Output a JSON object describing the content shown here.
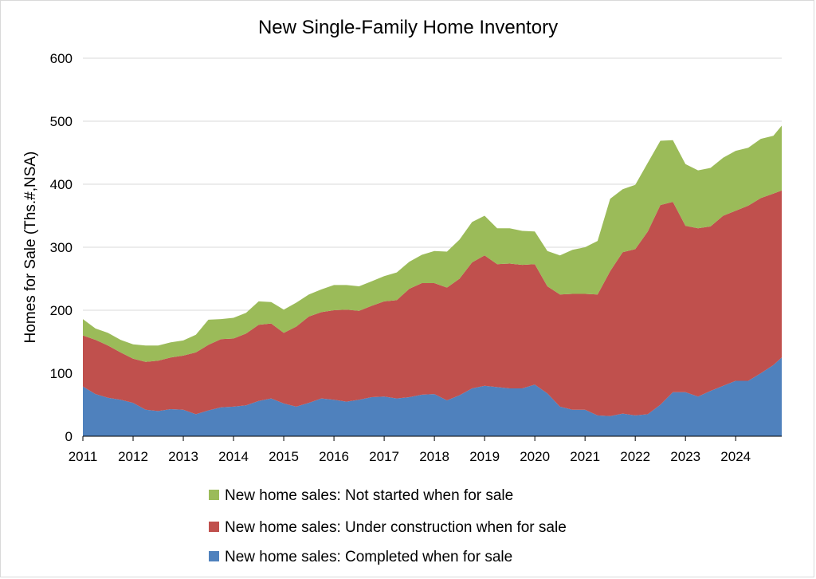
{
  "chart_data": {
    "type": "area",
    "stacked": true,
    "title": "New Single-Family Home Inventory",
    "xlabel": "",
    "ylabel": "Homes for Sale (Ths.#,NSA)",
    "ylim": [
      0,
      600
    ],
    "yticks": [
      0,
      100,
      200,
      300,
      400,
      500,
      600
    ],
    "xlim": [
      2011.0,
      2024.917
    ],
    "xticks": [
      "2011",
      "2012",
      "2013",
      "2014",
      "2015",
      "2016",
      "2017",
      "2018",
      "2019",
      "2020",
      "2021",
      "2022",
      "2023",
      "2024"
    ],
    "grid": "horizontal",
    "legend_position": "bottom",
    "x": [
      2011.0,
      2011.25,
      2011.5,
      2011.75,
      2012.0,
      2012.25,
      2012.5,
      2012.75,
      2013.0,
      2013.25,
      2013.5,
      2013.75,
      2014.0,
      2014.25,
      2014.5,
      2014.75,
      2015.0,
      2015.25,
      2015.5,
      2015.75,
      2016.0,
      2016.25,
      2016.5,
      2016.75,
      2017.0,
      2017.25,
      2017.5,
      2017.75,
      2018.0,
      2018.25,
      2018.5,
      2018.75,
      2019.0,
      2019.25,
      2019.5,
      2019.75,
      2020.0,
      2020.25,
      2020.5,
      2020.75,
      2021.0,
      2021.25,
      2021.5,
      2021.75,
      2022.0,
      2022.25,
      2022.5,
      2022.75,
      2023.0,
      2023.25,
      2023.5,
      2023.75,
      2024.0,
      2024.25,
      2024.5,
      2024.75,
      2024.917
    ],
    "series": [
      {
        "name": "New home sales: Completed when for sale",
        "color": "#4f81bd",
        "values": [
          79,
          67,
          61,
          58,
          53,
          42,
          40,
          43,
          42,
          35,
          41,
          46,
          47,
          49,
          56,
          60,
          52,
          47,
          53,
          60,
          58,
          55,
          58,
          62,
          63,
          60,
          62,
          66,
          67,
          57,
          65,
          76,
          80,
          78,
          76,
          76,
          82,
          68,
          47,
          42,
          42,
          33,
          32,
          36,
          33,
          35,
          50,
          70,
          70,
          63,
          72,
          80,
          88,
          88,
          100,
          113,
          125
        ]
      },
      {
        "name": "New home sales: Under construction when for sale",
        "color": "#c0504d",
        "values": [
          81,
          86,
          83,
          75,
          70,
          76,
          80,
          82,
          86,
          98,
          104,
          108,
          108,
          114,
          121,
          119,
          112,
          127,
          137,
          137,
          142,
          146,
          141,
          145,
          151,
          156,
          172,
          177,
          176,
          179,
          185,
          200,
          207,
          195,
          198,
          196,
          191,
          170,
          178,
          184,
          184,
          192,
          230,
          256,
          264,
          290,
          317,
          302,
          264,
          267,
          261,
          270,
          270,
          278,
          278,
          272,
          265
        ]
      },
      {
        "name": "New home sales: Not started when for sale",
        "color": "#9bbb59",
        "values": [
          26,
          18,
          20,
          20,
          23,
          26,
          24,
          24,
          24,
          28,
          40,
          32,
          33,
          33,
          37,
          34,
          37,
          38,
          35,
          36,
          40,
          39,
          39,
          39,
          40,
          44,
          43,
          45,
          51,
          57,
          62,
          64,
          63,
          57,
          56,
          54,
          52,
          56,
          62,
          70,
          74,
          85,
          115,
          100,
          102,
          109,
          102,
          98,
          98,
          92,
          93,
          92,
          95,
          92,
          94,
          92,
          103
        ]
      }
    ]
  },
  "legend": {
    "items": [
      {
        "label": "New home sales: Not started when for sale",
        "color": "#9bbb59"
      },
      {
        "label": "New home sales: Under construction when for sale",
        "color": "#c0504d"
      },
      {
        "label": "New home sales: Completed when for sale",
        "color": "#4f81bd"
      }
    ]
  }
}
